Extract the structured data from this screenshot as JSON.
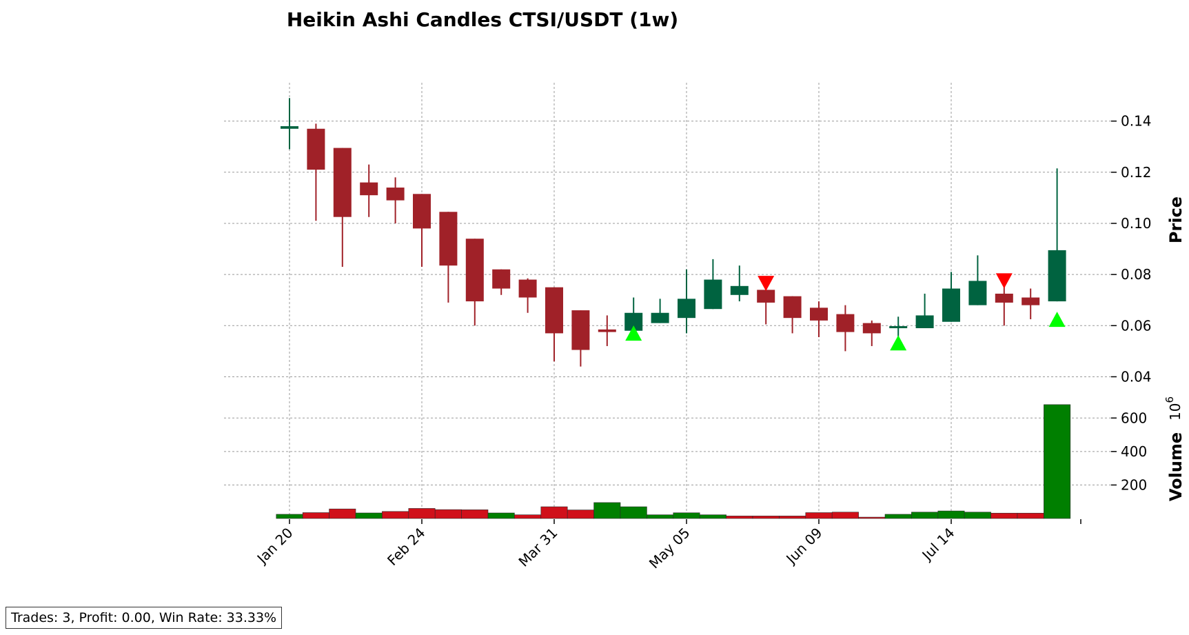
{
  "chart_data": {
    "type": "candlestick",
    "title": "Heikin Ashi Candles CTSI/USDT (1w)",
    "price_axis": {
      "label": "Price",
      "ticks": [
        0.04,
        0.06,
        0.08,
        0.1,
        0.12,
        0.14
      ],
      "tick_labels": [
        "0.04",
        "0.06",
        "0.08",
        "0.10",
        "0.12",
        "0.14"
      ],
      "range": [
        0.035,
        0.155
      ]
    },
    "volume_axis": {
      "label": "Volume",
      "multiplier": "10",
      "multiplier_exp": "6",
      "ticks": [
        200,
        400,
        600
      ],
      "tick_labels": [
        "200",
        "400",
        "600"
      ],
      "range": [
        0,
        700
      ]
    },
    "x_tick_labels": [
      "Jan 20",
      "Feb 24",
      "Mar 31",
      "May 05",
      "Jun 09",
      "Jul 14"
    ],
    "x_tick_indices": [
      0,
      5,
      10,
      15,
      20,
      25
    ],
    "grid": true,
    "colors": {
      "up": "#006340",
      "down": "#a02128",
      "vol_up": "#007f00",
      "vol_down": "#d0101a",
      "buy": "#00ff00",
      "sell": "#ff0000"
    },
    "candles": [
      {
        "o": 0.137,
        "h": 0.149,
        "l": 0.129,
        "c": 0.138,
        "dir": "up"
      },
      {
        "o": 0.137,
        "h": 0.139,
        "l": 0.101,
        "c": 0.121,
        "dir": "down"
      },
      {
        "o": 0.1295,
        "h": 0.1295,
        "l": 0.083,
        "c": 0.1025,
        "dir": "down"
      },
      {
        "o": 0.116,
        "h": 0.123,
        "l": 0.1025,
        "c": 0.111,
        "dir": "down"
      },
      {
        "o": 0.114,
        "h": 0.118,
        "l": 0.1,
        "c": 0.109,
        "dir": "down"
      },
      {
        "o": 0.1115,
        "h": 0.1115,
        "l": 0.083,
        "c": 0.098,
        "dir": "down"
      },
      {
        "o": 0.1045,
        "h": 0.1045,
        "l": 0.069,
        "c": 0.0835,
        "dir": "down"
      },
      {
        "o": 0.094,
        "h": 0.094,
        "l": 0.06,
        "c": 0.0695,
        "dir": "down"
      },
      {
        "o": 0.082,
        "h": 0.082,
        "l": 0.072,
        "c": 0.0745,
        "dir": "down"
      },
      {
        "o": 0.078,
        "h": 0.0785,
        "l": 0.065,
        "c": 0.071,
        "dir": "down"
      },
      {
        "o": 0.075,
        "h": 0.075,
        "l": 0.046,
        "c": 0.057,
        "dir": "down"
      },
      {
        "o": 0.066,
        "h": 0.066,
        "l": 0.044,
        "c": 0.0505,
        "dir": "down"
      },
      {
        "o": 0.0585,
        "h": 0.064,
        "l": 0.052,
        "c": 0.0575,
        "dir": "down"
      },
      {
        "o": 0.058,
        "h": 0.071,
        "l": 0.058,
        "c": 0.065,
        "dir": "up"
      },
      {
        "o": 0.061,
        "h": 0.0705,
        "l": 0.061,
        "c": 0.065,
        "dir": "up"
      },
      {
        "o": 0.063,
        "h": 0.082,
        "l": 0.057,
        "c": 0.0705,
        "dir": "up"
      },
      {
        "o": 0.0665,
        "h": 0.086,
        "l": 0.0665,
        "c": 0.078,
        "dir": "up"
      },
      {
        "o": 0.072,
        "h": 0.0835,
        "l": 0.0695,
        "c": 0.0755,
        "dir": "up"
      },
      {
        "o": 0.074,
        "h": 0.075,
        "l": 0.0605,
        "c": 0.069,
        "dir": "down"
      },
      {
        "o": 0.0715,
        "h": 0.0715,
        "l": 0.057,
        "c": 0.063,
        "dir": "down"
      },
      {
        "o": 0.067,
        "h": 0.0695,
        "l": 0.0555,
        "c": 0.062,
        "dir": "down"
      },
      {
        "o": 0.0645,
        "h": 0.068,
        "l": 0.05,
        "c": 0.0575,
        "dir": "down"
      },
      {
        "o": 0.061,
        "h": 0.062,
        "l": 0.052,
        "c": 0.057,
        "dir": "down"
      },
      {
        "o": 0.059,
        "h": 0.0635,
        "l": 0.054,
        "c": 0.0598,
        "dir": "up"
      },
      {
        "o": 0.059,
        "h": 0.0725,
        "l": 0.059,
        "c": 0.064,
        "dir": "up"
      },
      {
        "o": 0.0615,
        "h": 0.081,
        "l": 0.0615,
        "c": 0.0745,
        "dir": "up"
      },
      {
        "o": 0.068,
        "h": 0.0875,
        "l": 0.068,
        "c": 0.0775,
        "dir": "up"
      },
      {
        "o": 0.0725,
        "h": 0.0765,
        "l": 0.06,
        "c": 0.069,
        "dir": "down"
      },
      {
        "o": 0.071,
        "h": 0.0745,
        "l": 0.0625,
        "c": 0.068,
        "dir": "down"
      },
      {
        "o": 0.0695,
        "h": 0.1215,
        "l": 0.0695,
        "c": 0.0895,
        "dir": "up"
      }
    ],
    "volumes": [
      {
        "v": 25,
        "dir": "up"
      },
      {
        "v": 35,
        "dir": "down"
      },
      {
        "v": 57,
        "dir": "down"
      },
      {
        "v": 33,
        "dir": "up"
      },
      {
        "v": 42,
        "dir": "down"
      },
      {
        "v": 60,
        "dir": "down"
      },
      {
        "v": 53,
        "dir": "down"
      },
      {
        "v": 52,
        "dir": "down"
      },
      {
        "v": 33,
        "dir": "up"
      },
      {
        "v": 22,
        "dir": "down"
      },
      {
        "v": 70,
        "dir": "down"
      },
      {
        "v": 51,
        "dir": "down"
      },
      {
        "v": 95,
        "dir": "up"
      },
      {
        "v": 70,
        "dir": "up"
      },
      {
        "v": 22,
        "dir": "up"
      },
      {
        "v": 34,
        "dir": "up"
      },
      {
        "v": 22,
        "dir": "up"
      },
      {
        "v": 15,
        "dir": "down"
      },
      {
        "v": 15,
        "dir": "down"
      },
      {
        "v": 15,
        "dir": "down"
      },
      {
        "v": 35,
        "dir": "down"
      },
      {
        "v": 38,
        "dir": "down"
      },
      {
        "v": 8,
        "dir": "down"
      },
      {
        "v": 25,
        "dir": "up"
      },
      {
        "v": 38,
        "dir": "up"
      },
      {
        "v": 45,
        "dir": "up"
      },
      {
        "v": 38,
        "dir": "up"
      },
      {
        "v": 32,
        "dir": "down"
      },
      {
        "v": 32,
        "dir": "down"
      },
      {
        "v": 680,
        "dir": "up"
      }
    ],
    "signals": [
      {
        "index": 13,
        "type": "buy",
        "price": 0.0568
      },
      {
        "index": 18,
        "type": "sell",
        "price": 0.0765
      },
      {
        "index": 23,
        "type": "buy",
        "price": 0.053
      },
      {
        "index": 27,
        "type": "sell",
        "price": 0.0775
      },
      {
        "index": 29,
        "type": "buy",
        "price": 0.0622
      }
    ]
  },
  "stats": {
    "text": "Trades: 3, Profit: 0.00, Win Rate: 33.33%"
  }
}
